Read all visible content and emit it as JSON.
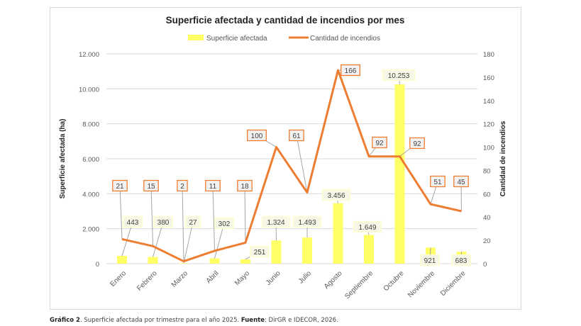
{
  "chart_data": {
    "type": "bar+line",
    "title": "Superficie afectada y cantidad de incendios por mes",
    "categories": [
      "Enero",
      "Febrero",
      "Marzo",
      "Abril",
      "Mayo",
      "Junio",
      "Julio",
      "Agosto",
      "Septiembre",
      "Octubre",
      "Noviembre",
      "Diciembre"
    ],
    "series": [
      {
        "name": "Superficie afectada",
        "type": "bar",
        "axis": "left",
        "color": "#ffff66",
        "values": [
          443,
          380,
          27,
          302,
          251,
          1324,
          1493,
          3456,
          1649,
          10253,
          921,
          683
        ],
        "labels": [
          "443",
          "380",
          "27",
          "302",
          "251",
          "1.324",
          "1.493",
          "3.456",
          "1.649",
          "10.253",
          "921",
          "683"
        ]
      },
      {
        "name": "Cantidad de incendios",
        "type": "line",
        "axis": "right",
        "color": "#ed7d31",
        "values": [
          21,
          15,
          2,
          11,
          18,
          100,
          61,
          166,
          92,
          92,
          51,
          45
        ],
        "labels": [
          "21",
          "15",
          "2",
          "11",
          "18",
          "100",
          "61",
          "166",
          "92",
          "92",
          "51",
          "45"
        ]
      }
    ],
    "ylabel": "Superficie afectada (ha)",
    "y2label": "Cantidad de incendios",
    "ylim": [
      0,
      12000
    ],
    "y2lim": [
      0,
      180
    ],
    "yticks": [
      "0",
      "2.000",
      "4.000",
      "6.000",
      "8.000",
      "10.000",
      "12.000"
    ],
    "y2ticks": [
      "0",
      "20",
      "40",
      "60",
      "80",
      "100",
      "120",
      "140",
      "160",
      "180"
    ],
    "grid": true,
    "legend": "top"
  },
  "caption": {
    "label": "Gráfico 2",
    "text": ". Superficie afectada por trimestre para el año 2025. ",
    "source_label": "Fuente",
    "source_text": ": DirGR e IDECOR, 2026."
  }
}
